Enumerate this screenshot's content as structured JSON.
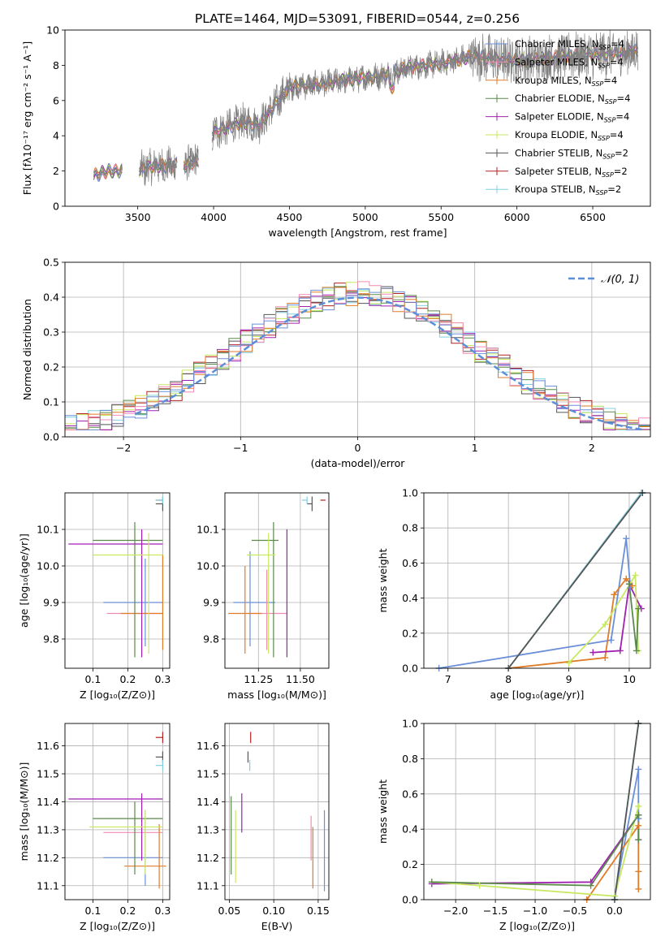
{
  "figure_title": "PLATE=1464, MJD=53091, FIBERID=0544, z=0.256",
  "colors": {
    "chabrier_miles": "#6a8fd8",
    "salpeter_miles": "#f08cb4",
    "kroupa_miles": "#e07b28",
    "chabrier_elodie": "#5a8a4a",
    "salpeter_elodie": "#a020b0",
    "kroupa_elodie": "#c8e860",
    "chabrier_stelib": "#555555",
    "salpeter_stelib": "#b22222",
    "kroupa_stelib": "#80d0e0",
    "gaussian": "#5b8fd8",
    "data": "#808080"
  },
  "chart_data": [
    {
      "id": "spectrum",
      "type": "line",
      "xlabel": "wavelength [Angstrom, rest frame]",
      "ylabel": "Flux [fλ10⁻¹⁷ erg cm⁻² s⁻¹ A⁻¹]",
      "xlim": [
        3020,
        6880
      ],
      "ylim": [
        0,
        10
      ],
      "xticks": [
        3500,
        4000,
        4500,
        5000,
        5500,
        6000,
        6500
      ],
      "yticks": [
        0,
        2,
        4,
        6,
        8,
        10
      ],
      "continuum": {
        "x": [
          3200,
          3300,
          3500,
          3600,
          3800,
          3900,
          4000,
          4200,
          4300,
          4500,
          4700,
          4900,
          5100,
          5300,
          5500,
          5700,
          5900,
          6100,
          6300,
          6500,
          6700,
          6800
        ],
        "y": [
          1.7,
          2.0,
          2.0,
          2.3,
          2.3,
          2.6,
          4.2,
          4.8,
          4.6,
          6.8,
          6.9,
          7.2,
          7.4,
          7.9,
          8.1,
          8.5,
          8.3,
          8.3,
          8.5,
          8.6,
          8.7,
          8.8
        ]
      },
      "legend": [
        {
          "label": "Chabrier MILES, N",
          "sub": "SSP",
          "suffix": "=4",
          "color": "#6a8fd8"
        },
        {
          "label": "Salpeter MILES, N",
          "sub": "SSP",
          "suffix": "=4",
          "color": "#f08cb4"
        },
        {
          "label": "Kroupa MILES, N",
          "sub": "SSP",
          "suffix": "=4",
          "color": "#e07b28"
        },
        {
          "label": "Chabrier ELODIE, N",
          "sub": "SSP",
          "suffix": "=4",
          "color": "#5a8a4a"
        },
        {
          "label": "Salpeter ELODIE, N",
          "sub": "SSP",
          "suffix": "=4",
          "color": "#a020b0"
        },
        {
          "label": "Kroupa ELODIE, N",
          "sub": "SSP",
          "suffix": "=4",
          "color": "#c8e860"
        },
        {
          "label": "Chabrier STELIB, N",
          "sub": "SSP",
          "suffix": "=2",
          "color": "#555555"
        },
        {
          "label": "Salpeter STELIB, N",
          "sub": "SSP",
          "suffix": "=2",
          "color": "#b22222"
        },
        {
          "label": "Kroupa STELIB, N",
          "sub": "SSP",
          "suffix": "=2",
          "color": "#80d0e0"
        }
      ]
    },
    {
      "id": "residuals",
      "type": "histogram",
      "xlabel": "(data-model)/error",
      "ylabel": "Normed distribution",
      "xlim": [
        -2.5,
        2.5
      ],
      "ylim": [
        0,
        0.5
      ],
      "xticks": [
        -2,
        -1,
        0,
        1,
        2
      ],
      "yticks": [
        0.0,
        0.1,
        0.2,
        0.3,
        0.4,
        0.5
      ],
      "legend_label": "𝒩(0, 1)",
      "grid": true
    },
    {
      "id": "age_Z",
      "type": "errorbar",
      "xlabel": "Z [log₁₀(Z/Z⊙)]",
      "ylabel": "age  [log₁₀(age/yr)]",
      "xlim": [
        0.02,
        0.32
      ],
      "ylim": [
        9.72,
        10.2
      ],
      "xticks": [
        0.1,
        0.2,
        0.3
      ],
      "yticks": [
        9.8,
        9.9,
        10.0,
        10.1
      ],
      "points": [
        {
          "x": 0.25,
          "y": 9.9,
          "xerr": [
            0.12,
            0.05
          ],
          "yerr": [
            0.12,
            0.12
          ],
          "c": "chabrier_miles"
        },
        {
          "x": 0.24,
          "y": 9.87,
          "xerr": [
            0.1,
            0.06
          ],
          "yerr": [
            0.0,
            0.0
          ],
          "c": "salpeter_miles"
        },
        {
          "x": 0.3,
          "y": 9.87,
          "xerr": [
            0.12,
            0.0
          ],
          "yerr": [
            0.1,
            0.16
          ],
          "c": "kroupa_miles"
        },
        {
          "x": 0.22,
          "y": 10.07,
          "xerr": [
            0.12,
            0.08
          ],
          "yerr": [
            0.32,
            0.05
          ],
          "c": "chabrier_elodie"
        },
        {
          "x": 0.24,
          "y": 10.06,
          "xerr": [
            0.21,
            0.06
          ],
          "yerr": [
            0.31,
            0.04
          ],
          "c": "salpeter_elodie"
        },
        {
          "x": 0.26,
          "y": 10.03,
          "xerr": [
            0.16,
            0.04
          ],
          "yerr": [
            0.27,
            0.06
          ],
          "c": "kroupa_elodie"
        },
        {
          "x": 0.3,
          "y": 10.17,
          "xerr": [
            0.02,
            0.0
          ],
          "yerr": [
            0.02,
            0.02
          ],
          "c": "chabrier_stelib"
        },
        {
          "x": 0.3,
          "y": 10.18,
          "xerr": [
            0.02,
            0.0
          ],
          "yerr": [
            0.0,
            0.0
          ],
          "c": "salpeter_stelib"
        },
        {
          "x": 0.3,
          "y": 10.18,
          "xerr": [
            0.02,
            0.0
          ],
          "yerr": [
            0.01,
            0.01
          ],
          "c": "kroupa_stelib"
        }
      ]
    },
    {
      "id": "age_mass",
      "type": "errorbar",
      "xlabel": "mass [log₁₀(M/M⊙)]",
      "ylabel": "",
      "xlim": [
        11.05,
        11.67
      ],
      "ylim": [
        9.72,
        10.2
      ],
      "xticks": [
        11.25,
        11.5
      ],
      "yticks": [
        9.8,
        9.9,
        10.0,
        10.1
      ],
      "points": [
        {
          "x": 11.2,
          "y": 9.9,
          "xerr": [
            0.1,
            0.15
          ],
          "yerr": [
            0.12,
            0.14
          ],
          "c": "chabrier_miles"
        },
        {
          "x": 11.3,
          "y": 9.87,
          "xerr": [
            0.1,
            0.12
          ],
          "yerr": [
            0.1,
            0.12
          ],
          "c": "salpeter_miles"
        },
        {
          "x": 11.17,
          "y": 9.87,
          "xerr": [
            0.1,
            0.1
          ],
          "yerr": [
            0.11,
            0.13
          ],
          "c": "kroupa_miles"
        },
        {
          "x": 11.34,
          "y": 10.07,
          "xerr": [
            0.13,
            0.03
          ],
          "yerr": [
            0.32,
            0.05
          ],
          "c": "chabrier_elodie"
        },
        {
          "x": 11.42,
          "y": 10.06,
          "xerr": [
            0.0,
            0.0
          ],
          "yerr": [
            0.31,
            0.04
          ],
          "c": "salpeter_elodie"
        },
        {
          "x": 11.31,
          "y": 10.03,
          "xerr": [
            0.13,
            0.04
          ],
          "yerr": [
            0.27,
            0.06
          ],
          "c": "kroupa_elodie"
        },
        {
          "x": 11.57,
          "y": 10.17,
          "xerr": [
            0.03,
            0.0
          ],
          "yerr": [
            0.02,
            0.02
          ],
          "c": "chabrier_stelib"
        },
        {
          "x": 11.65,
          "y": 10.18,
          "xerr": [
            0.03,
            0.0
          ],
          "yerr": [
            0.0,
            0.0
          ],
          "c": "salpeter_stelib"
        },
        {
          "x": 11.54,
          "y": 10.18,
          "xerr": [
            0.03,
            0.0
          ],
          "yerr": [
            0.01,
            0.01
          ],
          "c": "kroupa_stelib"
        }
      ]
    },
    {
      "id": "weight_age",
      "type": "line",
      "xlabel": "age  [log₁₀(age/yr)]",
      "ylabel": "mass weight",
      "xlim": [
        6.6,
        10.35
      ],
      "ylim": [
        0,
        1
      ],
      "xticks": [
        7,
        8,
        9,
        10
      ],
      "yticks": [
        0.0,
        0.2,
        0.4,
        0.6,
        0.8,
        1.0
      ],
      "series": [
        {
          "c": "chabrier_miles",
          "x": [
            6.85,
            9.7,
            9.95,
            10.02
          ],
          "y": [
            0.0,
            0.16,
            0.74,
            0.46
          ]
        },
        {
          "c": "kroupa_miles",
          "x": [
            8.0,
            9.6,
            9.75,
            9.95,
            10.05
          ],
          "y": [
            0.0,
            0.06,
            0.42,
            0.51,
            0.47
          ]
        },
        {
          "c": "salpeter_elodie",
          "x": [
            9.4,
            9.85,
            10.0,
            10.2
          ],
          "y": [
            0.09,
            0.1,
            0.48,
            0.34
          ]
        },
        {
          "c": "kroupa_elodie",
          "x": [
            9.0,
            9.6,
            10.1,
            10.15
          ],
          "y": [
            0.03,
            0.25,
            0.53,
            0.1
          ]
        },
        {
          "c": "chabrier_elodie",
          "x": [
            10.0,
            10.12,
            10.15
          ],
          "y": [
            0.48,
            0.1,
            0.34
          ]
        },
        {
          "c": "kroupa_stelib",
          "x": [
            8.0,
            10.2
          ],
          "y": [
            0.0,
            1.0
          ]
        },
        {
          "c": "chabrier_stelib",
          "x": [
            8.0,
            10.22
          ],
          "y": [
            0.0,
            1.0
          ]
        }
      ]
    },
    {
      "id": "mass_Z",
      "type": "errorbar",
      "xlabel": "Z [log₁₀(Z/Z⊙)]",
      "ylabel": "mass [log₁₀(M/M⊙)]",
      "xlim": [
        0.02,
        0.32
      ],
      "ylim": [
        11.05,
        11.68
      ],
      "xticks": [
        0.1,
        0.2,
        0.3
      ],
      "yticks": [
        11.1,
        11.2,
        11.3,
        11.4,
        11.5,
        11.6
      ],
      "points": [
        {
          "x": 0.25,
          "y": 11.2,
          "xerr": [
            0.12,
            0.05
          ],
          "yerr": [
            0.1,
            0.17
          ],
          "c": "chabrier_miles"
        },
        {
          "x": 0.23,
          "y": 11.29,
          "xerr": [
            0.1,
            0.07
          ],
          "yerr": [
            0.0,
            0.0
          ],
          "c": "salpeter_miles"
        },
        {
          "x": 0.29,
          "y": 11.17,
          "xerr": [
            0.1,
            0.02
          ],
          "yerr": [
            0.08,
            0.15
          ],
          "c": "kroupa_miles"
        },
        {
          "x": 0.22,
          "y": 11.34,
          "xerr": [
            0.12,
            0.08
          ],
          "yerr": [
            0.2,
            0.06
          ],
          "c": "chabrier_elodie"
        },
        {
          "x": 0.24,
          "y": 11.41,
          "xerr": [
            0.21,
            0.06
          ],
          "yerr": [
            0.22,
            0.02
          ],
          "c": "salpeter_elodie"
        },
        {
          "x": 0.25,
          "y": 11.31,
          "xerr": [
            0.16,
            0.05
          ],
          "yerr": [
            0.17,
            0.06
          ],
          "c": "kroupa_elodie"
        },
        {
          "x": 0.3,
          "y": 11.56,
          "xerr": [
            0.02,
            0.0
          ],
          "yerr": [
            0.02,
            0.02
          ],
          "c": "chabrier_stelib"
        },
        {
          "x": 0.3,
          "y": 11.63,
          "xerr": [
            0.02,
            0.0
          ],
          "yerr": [
            0.02,
            0.02
          ],
          "c": "salpeter_stelib"
        },
        {
          "x": 0.3,
          "y": 11.53,
          "xerr": [
            0.02,
            0.0
          ],
          "yerr": [
            0.02,
            0.02
          ],
          "c": "kroupa_stelib"
        }
      ]
    },
    {
      "id": "mass_ebv",
      "type": "errorbar",
      "xlabel": "E(B-V)",
      "ylabel": "",
      "xlim": [
        0.045,
        0.162
      ],
      "ylim": [
        11.05,
        11.68
      ],
      "xticks": [
        0.05,
        0.1,
        0.15
      ],
      "yticks": [
        11.1,
        11.2,
        11.3,
        11.4,
        11.5,
        11.6
      ],
      "points": [
        {
          "x": 0.157,
          "y": 11.2,
          "xerr": [
            0.0,
            0.0
          ],
          "yerr": [
            0.12,
            0.17
          ],
          "c": "chabrier_miles"
        },
        {
          "x": 0.142,
          "y": 11.29,
          "xerr": [
            0.0,
            0.0
          ],
          "yerr": [
            0.1,
            0.06
          ],
          "c": "salpeter_miles"
        },
        {
          "x": 0.144,
          "y": 11.17,
          "xerr": [
            0.0,
            0.0
          ],
          "yerr": [
            0.08,
            0.14
          ],
          "c": "kroupa_miles"
        },
        {
          "x": 0.052,
          "y": 11.34,
          "xerr": [
            0.0,
            0.0
          ],
          "yerr": [
            0.2,
            0.08
          ],
          "c": "chabrier_elodie"
        },
        {
          "x": 0.064,
          "y": 11.41,
          "xerr": [
            0.0,
            0.0
          ],
          "yerr": [
            0.12,
            0.02
          ],
          "c": "salpeter_elodie"
        },
        {
          "x": 0.057,
          "y": 11.31,
          "xerr": [
            0.0,
            0.0
          ],
          "yerr": [
            0.2,
            0.06
          ],
          "c": "kroupa_elodie"
        },
        {
          "x": 0.071,
          "y": 11.56,
          "xerr": [
            0.0,
            0.0
          ],
          "yerr": [
            0.02,
            0.02
          ],
          "c": "chabrier_stelib"
        },
        {
          "x": 0.074,
          "y": 11.63,
          "xerr": [
            0.0,
            0.0
          ],
          "yerr": [
            0.02,
            0.02
          ],
          "c": "salpeter_stelib"
        },
        {
          "x": 0.073,
          "y": 11.53,
          "xerr": [
            0.0,
            0.0
          ],
          "yerr": [
            0.02,
            0.02
          ],
          "c": "kroupa_stelib"
        }
      ]
    },
    {
      "id": "weight_Z",
      "type": "line",
      "xlabel": "Z [log₁₀(Z/Z⊙)]",
      "ylabel": "mass weight",
      "xlim": [
        -2.4,
        0.45
      ],
      "ylim": [
        0,
        1
      ],
      "xticks": [
        -2.0,
        -1.5,
        -1.0,
        -0.5,
        0.0
      ],
      "yticks": [
        0.0,
        0.2,
        0.4,
        0.6,
        0.8,
        1.0
      ],
      "series": [
        {
          "c": "chabrier_miles",
          "x": [
            0.0,
            0.3,
            0.3
          ],
          "y": [
            0.02,
            0.74,
            0.46
          ]
        },
        {
          "c": "kroupa_miles",
          "x": [
            -0.35,
            0.3,
            0.3,
            0.3
          ],
          "y": [
            0.0,
            0.42,
            0.16,
            0.06
          ]
        },
        {
          "c": "salpeter_elodie",
          "x": [
            -2.3,
            -0.3,
            0.3,
            0.3
          ],
          "y": [
            0.09,
            0.1,
            0.48,
            0.34
          ]
        },
        {
          "c": "kroupa_elodie",
          "x": [
            -2.3,
            -1.7,
            0.0,
            0.3
          ],
          "y": [
            0.1,
            0.08,
            0.02,
            0.53
          ]
        },
        {
          "c": "chabrier_elodie",
          "x": [
            -2.3,
            -0.3,
            0.3,
            0.3
          ],
          "y": [
            0.1,
            0.08,
            0.48,
            0.34
          ]
        },
        {
          "c": "kroupa_stelib",
          "x": [
            0.0,
            0.3
          ],
          "y": [
            0.0,
            1.0
          ]
        },
        {
          "c": "chabrier_stelib",
          "x": [
            0.0,
            0.3
          ],
          "y": [
            0.0,
            1.0
          ]
        }
      ]
    }
  ]
}
